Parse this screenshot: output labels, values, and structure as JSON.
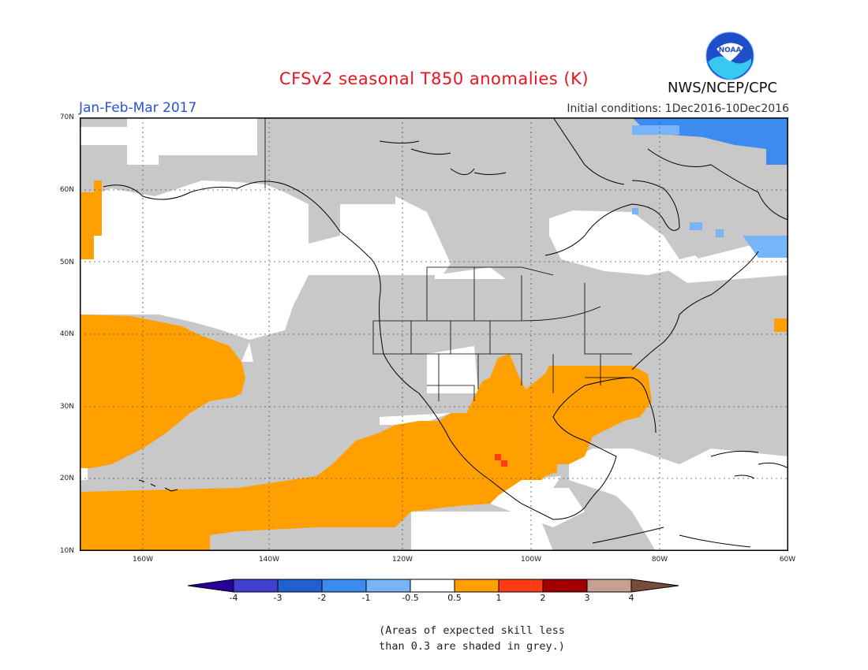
{
  "header": {
    "title": "CFSv2 seasonal T850 anomalies (K)",
    "period": "Jan-Feb-Mar 2017",
    "initial_conditions": "Initial conditions: 1Dec2016-10Dec2016",
    "agency": "NWS/NCEP/CPC",
    "logo_text": "NOAA"
  },
  "map": {
    "lat_ticks": [
      "70N",
      "60N",
      "50N",
      "40N",
      "30N",
      "20N",
      "10N"
    ],
    "lon_ticks": [
      "160W",
      "140W",
      "120W",
      "100W",
      "80W",
      "60W"
    ],
    "lon_range": [
      -172,
      -60
    ],
    "lat_range": [
      10,
      70
    ],
    "colors": {
      "grey_low_skill": "#c8c8c8",
      "near_normal": "#ffffff",
      "warm_0_5_1": "#ffa000",
      "warm_1_2": "#ff3c14",
      "cool_m1_m05": "#78b4f8",
      "cool_m2_m1": "#3c8cf0"
    }
  },
  "colorbar": {
    "labels": [
      "-4",
      "-3",
      "-2",
      "-1",
      "-0.5",
      "0.5",
      "1",
      "2",
      "3",
      "4"
    ],
    "colors": [
      "#28009a",
      "#4040d0",
      "#2060d0",
      "#3c8cf0",
      "#78b4f8",
      "#ffffff",
      "#ffa000",
      "#ff3c14",
      "#a00000",
      "#c8a090",
      "#784c3c"
    ]
  },
  "note": {
    "line1": "(Areas of expected skill less",
    "line2": "than 0.3 are shaded in grey.)"
  }
}
